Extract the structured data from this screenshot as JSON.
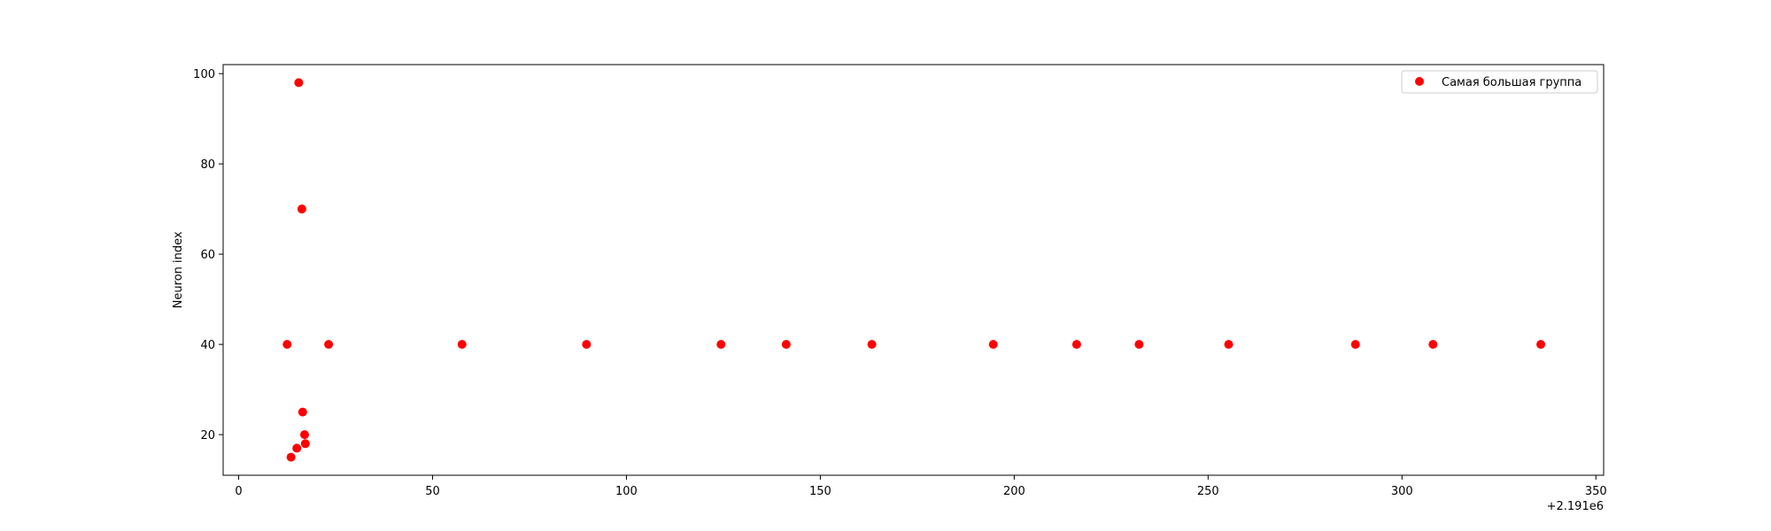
{
  "chart_data": {
    "type": "scatter",
    "title": "",
    "xlabel": "",
    "ylabel": "Neuron index",
    "x_offset_label": "+2.191e6",
    "xlim": [
      -4,
      352
    ],
    "ylim": [
      11,
      102
    ],
    "xticks": [
      0,
      50,
      100,
      150,
      200,
      250,
      300,
      350
    ],
    "yticks": [
      20,
      40,
      60,
      80,
      100
    ],
    "grid": false,
    "legend_position": "top-right",
    "series": [
      {
        "name": "Самая большая группа",
        "color": "#ff0000",
        "marker": "circle",
        "points": [
          {
            "x": 12.5,
            "y": 40
          },
          {
            "x": 13.5,
            "y": 15
          },
          {
            "x": 15.0,
            "y": 17
          },
          {
            "x": 15.5,
            "y": 98
          },
          {
            "x": 16.3,
            "y": 70
          },
          {
            "x": 16.5,
            "y": 25
          },
          {
            "x": 17.0,
            "y": 20
          },
          {
            "x": 17.2,
            "y": 18
          },
          {
            "x": 23.2,
            "y": 40
          },
          {
            "x": 57.6,
            "y": 40
          },
          {
            "x": 89.7,
            "y": 40
          },
          {
            "x": 124.4,
            "y": 40
          },
          {
            "x": 141.2,
            "y": 40
          },
          {
            "x": 163.3,
            "y": 40
          },
          {
            "x": 194.6,
            "y": 40
          },
          {
            "x": 216.1,
            "y": 40
          },
          {
            "x": 232.2,
            "y": 40
          },
          {
            "x": 255.3,
            "y": 40
          },
          {
            "x": 288.0,
            "y": 40
          },
          {
            "x": 308.0,
            "y": 40
          },
          {
            "x": 335.8,
            "y": 40
          }
        ]
      }
    ]
  }
}
